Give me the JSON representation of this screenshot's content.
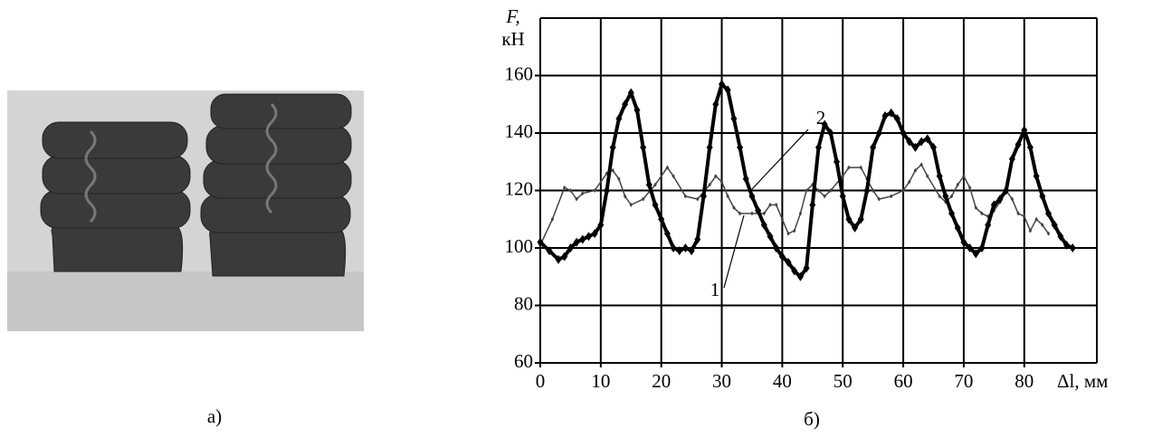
{
  "chart_data": {
    "type": "line",
    "ylabel": "F,",
    "yunit": "кН",
    "xlabel": "Δl, мм",
    "caption": "б)",
    "xlim": [
      0,
      92
    ],
    "ylim": [
      60,
      180
    ],
    "xticks": [
      0,
      10,
      20,
      30,
      40,
      50,
      60,
      70,
      80
    ],
    "yticks": [
      60,
      80,
      100,
      120,
      140,
      160
    ],
    "grid": true,
    "series": [
      {
        "color": "#444444",
        "linewidth": 1.5,
        "x": [
          0,
          2,
          4,
          5,
          6,
          7,
          9,
          11,
          12,
          13,
          14,
          15,
          17,
          19,
          21,
          22,
          24,
          26,
          28,
          29,
          30,
          31,
          32,
          33,
          35,
          37,
          38,
          39,
          40,
          41,
          42,
          43,
          44,
          45,
          46,
          47,
          48,
          50,
          51,
          53,
          54,
          55,
          56,
          58,
          60,
          61,
          62,
          63,
          64,
          66,
          67,
          68,
          69,
          70,
          71,
          72,
          73,
          74,
          75,
          76,
          77,
          78,
          79,
          80,
          81,
          82,
          83,
          84
        ],
        "values": [
          101,
          110,
          121,
          120,
          117,
          119,
          120,
          126,
          127,
          124,
          118,
          115,
          117,
          122,
          128,
          125,
          118,
          117,
          122,
          125,
          123,
          118,
          114,
          112,
          112,
          112,
          115,
          115,
          110,
          105,
          106,
          112,
          120,
          122,
          120,
          118,
          120,
          125,
          128,
          128,
          124,
          120,
          117,
          118,
          120,
          123,
          127,
          129,
          125,
          118,
          116,
          118,
          122,
          125,
          121,
          114,
          112,
          111,
          113,
          116,
          120,
          117,
          112,
          111,
          106,
          110,
          108,
          105
        ]
      },
      {
        "color": "#000000",
        "linewidth": 4,
        "x": [
          0,
          1.5,
          3,
          4,
          5,
          6,
          7,
          8,
          9,
          10,
          11,
          12,
          13,
          14,
          15,
          16,
          17,
          18,
          19,
          20,
          21,
          22,
          23,
          24,
          25,
          26,
          27,
          28,
          29,
          30,
          31,
          32,
          33,
          34,
          35,
          36,
          37,
          38,
          39,
          40,
          41,
          42,
          43,
          44,
          45,
          46,
          47,
          48,
          49,
          50,
          51,
          52,
          53,
          54,
          55,
          56,
          57,
          58,
          59,
          60,
          61,
          62,
          63,
          64,
          65,
          66,
          67,
          68,
          69,
          70,
          71,
          72,
          73,
          74,
          75,
          76,
          77,
          78,
          79,
          80,
          81,
          82,
          83,
          84,
          85,
          86,
          87,
          88
        ],
        "values": [
          102,
          99,
          96,
          97,
          100,
          102,
          103,
          104,
          105,
          108,
          120,
          135,
          145,
          150,
          154,
          148,
          135,
          122,
          115,
          110,
          105,
          100,
          99,
          100,
          99,
          103,
          118,
          135,
          150,
          157,
          155,
          145,
          135,
          124,
          118,
          113,
          108,
          104,
          100,
          97,
          95,
          92,
          90,
          93,
          115,
          135,
          143,
          140,
          130,
          118,
          110,
          107,
          110,
          120,
          135,
          140,
          146,
          147,
          145,
          140,
          137,
          135,
          137,
          138,
          135,
          125,
          118,
          112,
          107,
          102,
          100,
          98,
          100,
          108,
          115,
          117,
          120,
          131,
          136,
          141,
          135,
          125,
          118,
          112,
          108,
          104,
          101,
          100
        ]
      }
    ],
    "annotations": [
      {
        "text": "2"
      },
      {
        "text": "1"
      }
    ]
  },
  "figure": {
    "caption": "а)"
  }
}
